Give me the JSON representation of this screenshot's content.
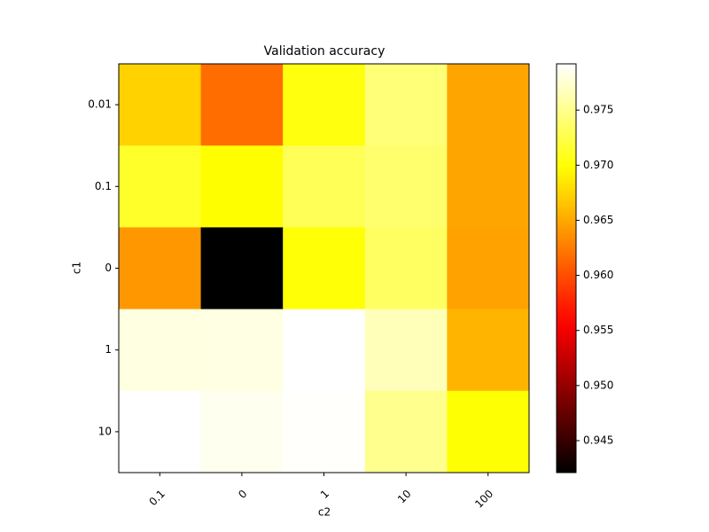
{
  "chart_data": {
    "type": "heatmap",
    "title": "Validation accuracy",
    "xlabel": "c2",
    "ylabel": "c1",
    "x_categories": [
      "0.1",
      "0",
      "1",
      "10",
      "100"
    ],
    "y_categories": [
      "0.01",
      "0.1",
      "0",
      "1",
      "10"
    ],
    "values": [
      [
        0.9673,
        0.9617,
        0.9703,
        0.9742,
        0.9648
      ],
      [
        0.9713,
        0.9697,
        0.973,
        0.9738,
        0.9648
      ],
      [
        0.964,
        0.9421,
        0.97,
        0.9734,
        0.9646
      ],
      [
        0.9781,
        0.9782,
        0.9792,
        0.9766,
        0.9656
      ],
      [
        0.9792,
        0.9786,
        0.9791,
        0.975,
        0.9699
      ]
    ],
    "colormap": "hot",
    "clim": [
      0.9421,
      0.9792
    ],
    "cticks": [
      0.945,
      {
        "value": 0.95,
        "label": "0.950"
      },
      0.955,
      {
        "value": 0.96,
        "label": "0.960"
      },
      0.965,
      {
        "value": 0.97,
        "label": "0.970"
      },
      0.975
    ]
  }
}
